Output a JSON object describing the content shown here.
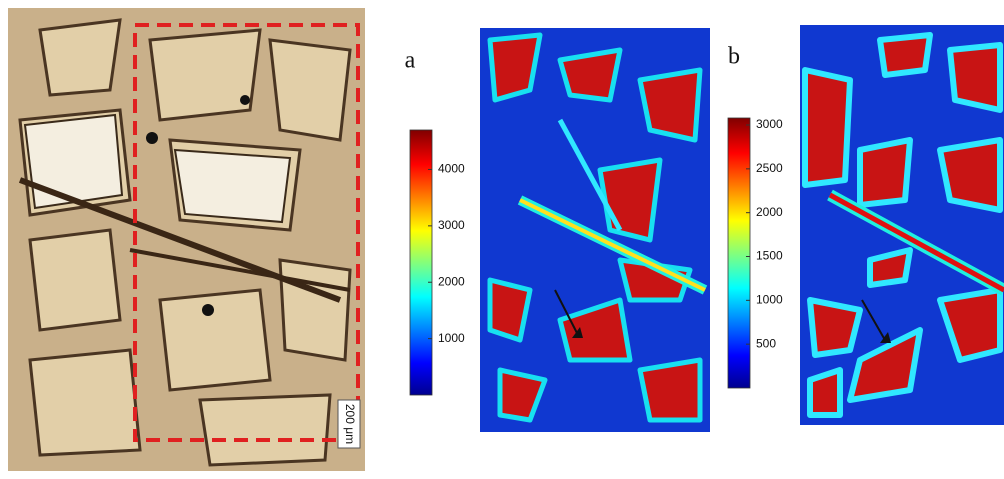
{
  "panels": [
    {
      "label": "a",
      "colorbar": {
        "lim": [
          0,
          4700
        ],
        "ticks": [
          1000,
          2000,
          3000,
          4000
        ]
      }
    },
    {
      "label": "b",
      "colorbar": {
        "lim": [
          0,
          3080
        ],
        "ticks": [
          500,
          1000,
          1500,
          2000,
          2500,
          3000
        ]
      }
    }
  ],
  "scale_bar": "200 μm"
}
